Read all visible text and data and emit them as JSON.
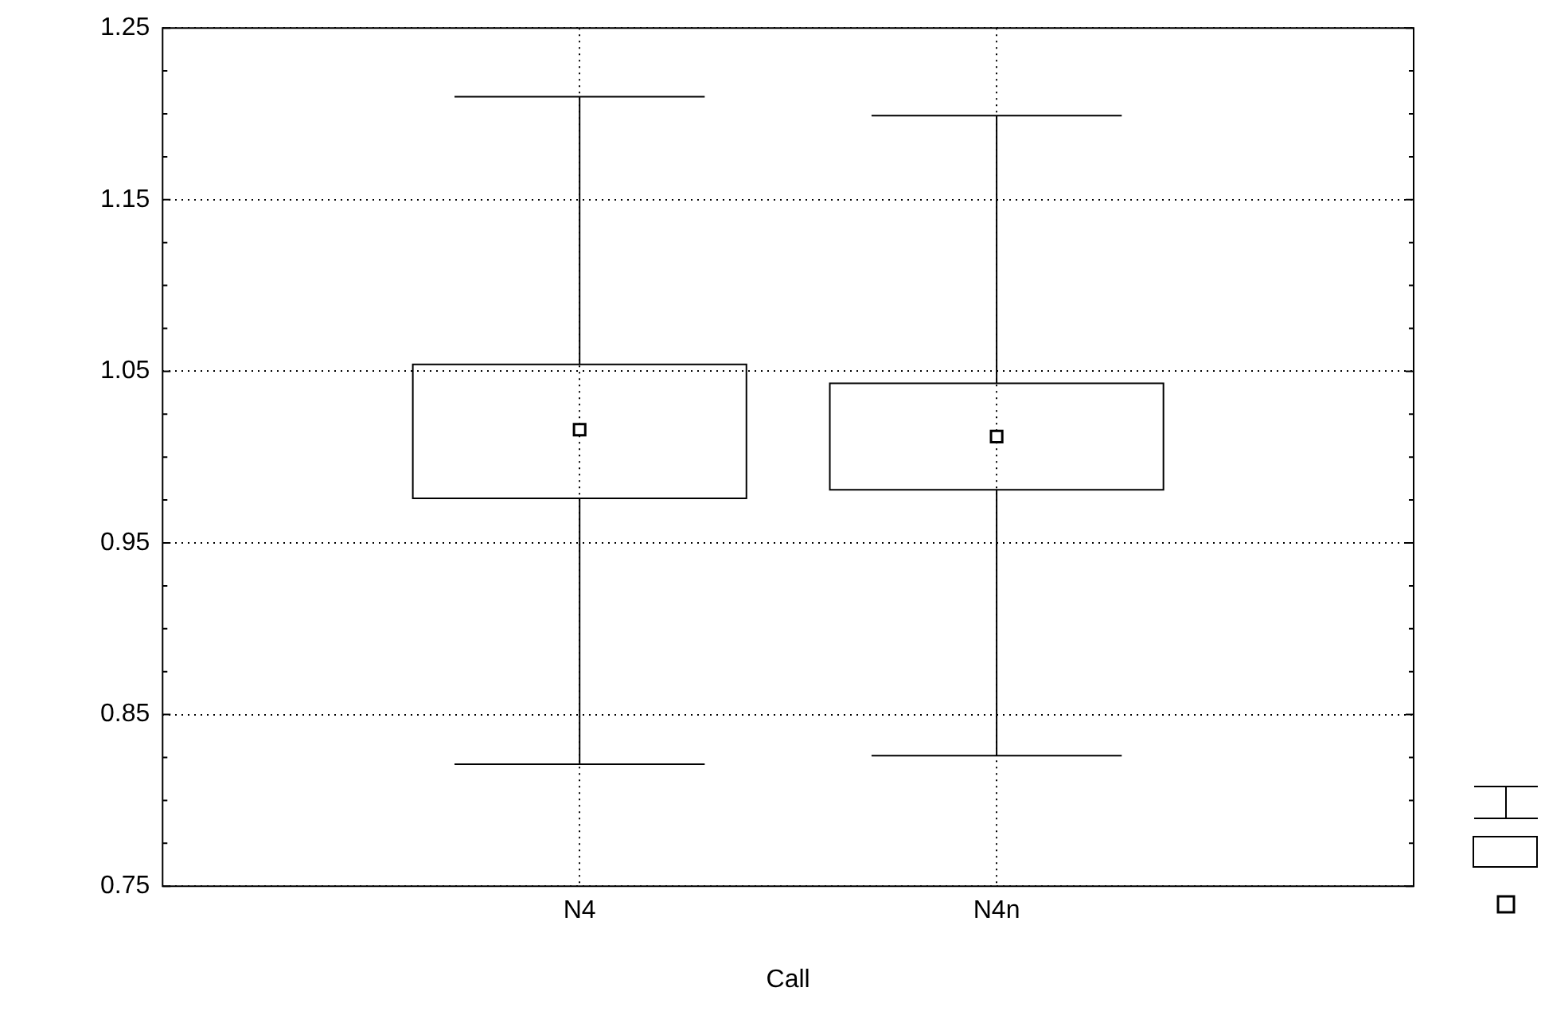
{
  "chart_data": {
    "type": "box",
    "xlabel": "Call",
    "categories": [
      "N4",
      "N4n"
    ],
    "boxes": [
      {
        "low": 0.821,
        "q1": 0.976,
        "median": 1.016,
        "q3": 1.054,
        "high": 1.21
      },
      {
        "low": 0.826,
        "q1": 0.981,
        "median": 1.012,
        "q3": 1.043,
        "high": 1.199
      }
    ],
    "color": "#000000",
    "marker": "square",
    "ylim": [
      0.75,
      1.25
    ],
    "yticks": [
      0.75,
      {
        "value": 0.775,
        "label": null
      },
      {
        "value": 0.8,
        "label": null
      },
      {
        "value": 0.825,
        "label": null
      },
      0.85,
      {
        "value": 0.875,
        "label": null
      },
      {
        "value": 0.9,
        "label": null
      },
      {
        "value": 0.925,
        "label": null
      },
      0.95,
      {
        "value": 0.975,
        "label": null
      },
      {
        "value": 1.0,
        "label": null
      },
      {
        "value": 1.025,
        "label": null
      },
      1.05,
      {
        "value": 1.075,
        "label": null
      },
      {
        "value": 1.1,
        "label": null
      },
      {
        "value": 1.125,
        "label": null
      },
      1.15,
      {
        "value": 1.175,
        "label": null
      },
      {
        "value": 1.2,
        "label": null
      },
      {
        "value": 1.225,
        "label": null
      },
      1.25
    ],
    "grid": true,
    "legend": false
  }
}
